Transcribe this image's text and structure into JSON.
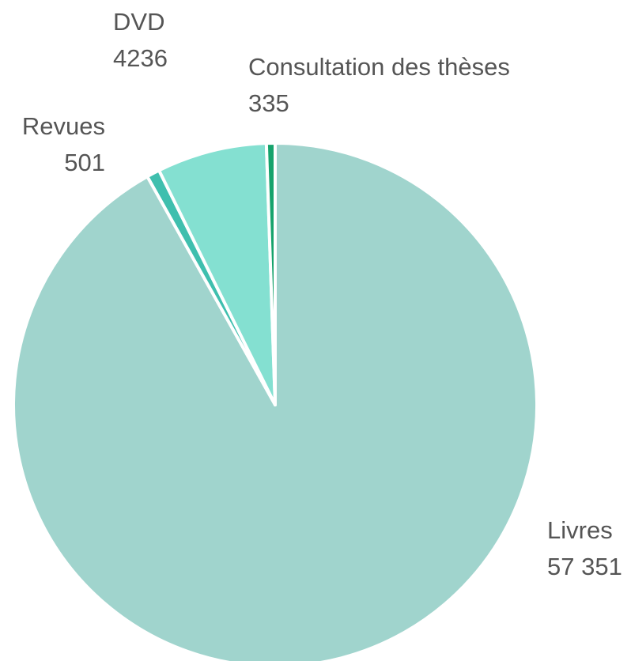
{
  "chart_data": {
    "type": "pie",
    "categories": [
      "Livres",
      "Revues",
      "DVD",
      "Consultation des thèses"
    ],
    "values": [
      57351,
      501,
      4236,
      335
    ],
    "value_labels": [
      "57 351",
      "501",
      "4236",
      "335"
    ],
    "colors": [
      "#a0d4cd",
      "#3fbfae",
      "#84e0d1",
      "#16a36c"
    ]
  }
}
